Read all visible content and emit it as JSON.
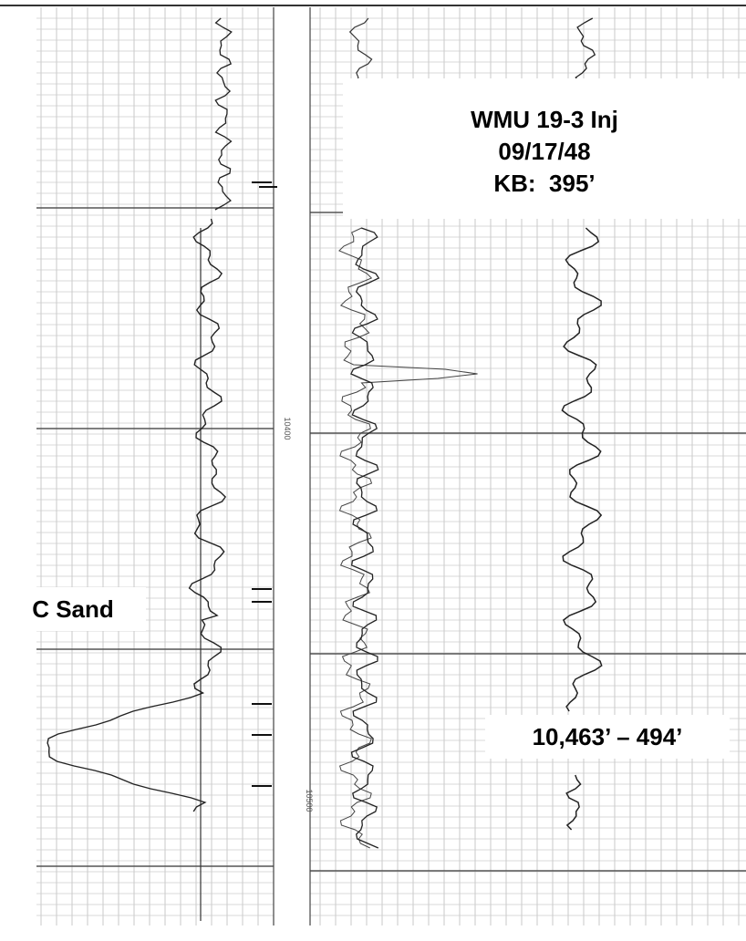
{
  "header": {
    "well": "WMU 19-3 Inj",
    "date": "09/17/48",
    "kb": "KB:  395’"
  },
  "annotations": {
    "zone": "C Sand",
    "interval": "10,463’ – 494’"
  },
  "depth_marks": [
    "10400",
    "10500"
  ]
}
